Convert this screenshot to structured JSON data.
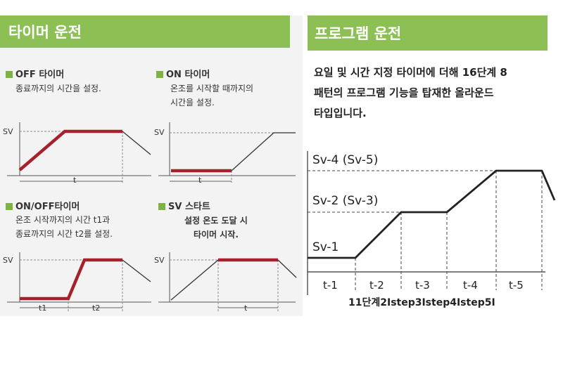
{
  "timer_panel": {
    "title": "타이머 운전",
    "off_timer": {
      "title": "OFF 타이머",
      "desc": [
        "종료까지의 시간을 설정."
      ],
      "sv": "SV",
      "t": "t"
    },
    "on_timer": {
      "title": "ON 타이머",
      "desc": [
        "온조를 시작할 때까지의",
        "시간을 설정."
      ],
      "sv": "SV",
      "t": "t"
    },
    "onoff_timer": {
      "title": "ON/OFF타이머",
      "desc": [
        "온조 시작까지의 시간 t1과",
        "종료까지의 시간 t2를 설정."
      ],
      "sv": "SV",
      "t1": "t1",
      "t2": "t2"
    },
    "sv_start": {
      "title": "SV 스타트",
      "desc": [
        "설정 온도 도달 시",
        "타이머 시작."
      ],
      "sv": "SV",
      "t": "t"
    }
  },
  "program_panel": {
    "title": "프로그램 운전",
    "desc": [
      "요일 및 시간 지정 타이머에 더해 16단계 8",
      "패턴의 프로그램 기능을 탑재한 올라운드",
      "타입입니다."
    ],
    "levels": [
      "Sv-4 (Sv-5)",
      "Sv-2 (Sv-3)",
      "Sv-1"
    ],
    "steps": [
      "t-1",
      "t-2",
      "t-3",
      "t-4",
      "t-5"
    ],
    "footer": "11단계2Istep3Istep4Istep5I"
  },
  "colors": {
    "header_green": "#8cc054",
    "bullet_green": "#7cb342",
    "profile_red": "#a5222d",
    "panel_gray": "#f3f3f3"
  }
}
